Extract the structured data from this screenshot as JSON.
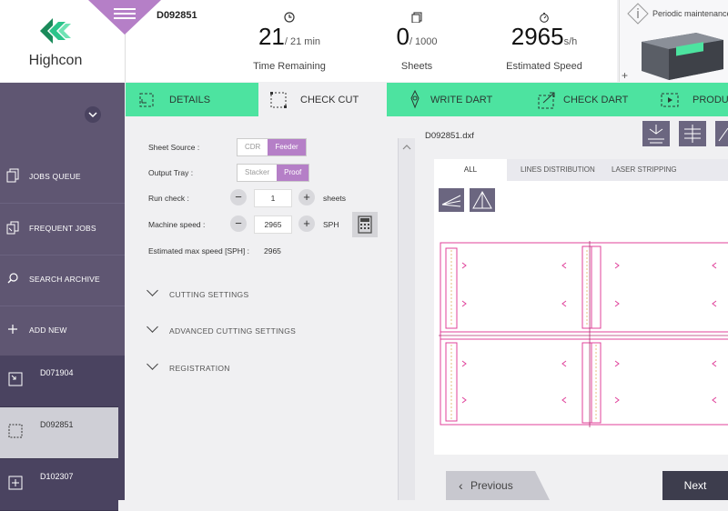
{
  "logo": {
    "text": "Highcon"
  },
  "header": {
    "job_id": "D092851",
    "metrics": [
      {
        "value": "21",
        "suffix": "/ 21 min",
        "label": "Time Remaining",
        "icon": "clock-icon"
      },
      {
        "value": "0",
        "suffix": "/ 1000",
        "label": "Sheets",
        "icon": "sheets-icon"
      },
      {
        "value": "2965",
        "suffix": "s/h",
        "label": "Estimated Speed",
        "icon": "stopwatch-icon"
      }
    ],
    "maintenance": "Periodic maintenance"
  },
  "sidebar": {
    "items": [
      {
        "label": "JOBS QUEUE",
        "icon": "jobs-queue-icon"
      },
      {
        "label": "FREQUENT JOBS",
        "icon": "frequent-jobs-icon"
      },
      {
        "label": "SEARCH ARCHIVE",
        "icon": "search-icon"
      },
      {
        "label": "ADD NEW",
        "icon": "plus-icon"
      }
    ],
    "jobs": [
      {
        "label": "D071904"
      },
      {
        "label": "D092851"
      },
      {
        "label": "D102307"
      }
    ]
  },
  "tabs": [
    {
      "label": "DETAILS"
    },
    {
      "label": "CHECK CUT"
    },
    {
      "label": "WRITE DART"
    },
    {
      "label": "CHECK DART"
    },
    {
      "label": "PRODUC"
    }
  ],
  "form": {
    "sheet_source_label": "Sheet Source :",
    "sheet_source_options": [
      "CDR",
      "Feeder"
    ],
    "output_tray_label": "Output Tray :",
    "output_tray_options": [
      "Stacker",
      "Proof"
    ],
    "run_check_label": "Run check :",
    "run_check_value": "1",
    "run_check_unit": "sheets",
    "machine_speed_label": "Machine speed :",
    "machine_speed_value": "2965",
    "machine_speed_unit": "SPH",
    "est_max_label": "Estimated max speed [SPH] :",
    "est_max_value": "2965",
    "minus": "−",
    "plus": "+"
  },
  "sections": [
    "CUTTING SETTINGS",
    "ADVANCED CUTTING SETTINGS",
    "REGISTRATION"
  ],
  "viewer": {
    "file_name": "D092851.dxf",
    "tabs": [
      "ALL",
      "LINES DISTRIBUTION",
      "LASER STRIPPING"
    ]
  },
  "nav": {
    "previous": "Previous",
    "next": "Next"
  },
  "colors": {
    "accent_green": "#4de3a0",
    "purple": "#b57fc7",
    "sidebar": "#5f5672",
    "cut_line": "#e0409a"
  }
}
